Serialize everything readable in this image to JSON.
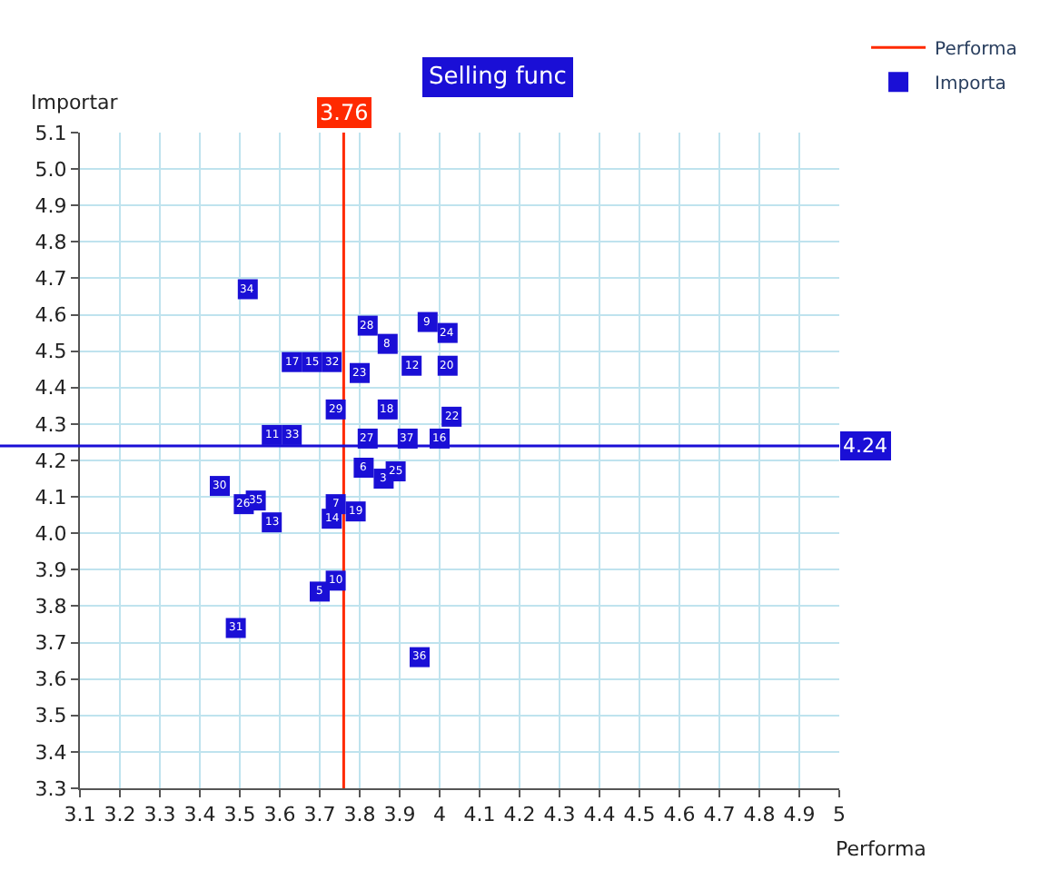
{
  "chart_data": {
    "type": "scatter",
    "title": "Selling func",
    "xlabel": "Performa",
    "ylabel": "Importar",
    "xlim": [
      3.1,
      5
    ],
    "ylim": [
      3.3,
      5.1
    ],
    "xticks": [
      3.1,
      3.2,
      3.3,
      3.4,
      3.5,
      3.6,
      3.7,
      3.8,
      3.9,
      4,
      4.1,
      4.2,
      4.3,
      4.4,
      4.5,
      4.6,
      4.7,
      4.8,
      4.9,
      5
    ],
    "yticks": [
      3.3,
      3.4,
      3.5,
      3.6,
      3.7,
      3.8,
      3.9,
      {
        "value": 4,
        "label": "4.0"
      },
      4.1,
      4.2,
      4.3,
      4.4,
      4.5,
      4.6,
      4.7,
      4.8,
      4.9,
      {
        "value": 5,
        "label": "5.0"
      },
      5.1
    ],
    "grid": true,
    "legend": "top right",
    "marker": "square",
    "series": [
      {
        "name": "Performa",
        "type": "line",
        "marker": "none",
        "color": "#ff2a00",
        "x": [
          3.76,
          3.76
        ],
        "values": [
          3.3,
          5.1
        ]
      },
      {
        "name": "Importa",
        "color": "#1a0fd6",
        "x": [
          3.52,
          3.82,
          3.97,
          4.02,
          3.87,
          3.63,
          3.68,
          3.73,
          3.8,
          3.93,
          4.02,
          3.74,
          3.87,
          4.03,
          3.58,
          3.63,
          3.82,
          3.92,
          4.0,
          3.81,
          3.89,
          3.86,
          3.45,
          3.51,
          3.54,
          3.74,
          3.73,
          3.79,
          3.58,
          3.74,
          3.7,
          3.49,
          3.95
        ],
        "values": [
          4.67,
          4.57,
          4.58,
          4.55,
          4.52,
          4.47,
          4.47,
          4.47,
          4.44,
          4.46,
          4.46,
          4.34,
          4.34,
          4.32,
          4.27,
          4.27,
          4.26,
          4.26,
          4.26,
          4.18,
          4.17,
          4.15,
          4.13,
          4.08,
          4.09,
          4.08,
          4.04,
          4.06,
          4.03,
          3.87,
          3.84,
          3.74,
          3.66
        ]
      }
    ],
    "annotations": [
      {
        "text": "3.76",
        "x": 3.76,
        "y": 5.1
      },
      {
        "text": "34",
        "x": 3.52,
        "y": 4.67
      },
      {
        "text": "28",
        "x": 3.82,
        "y": 4.57
      },
      {
        "text": "9",
        "x": 3.97,
        "y": 4.58
      },
      {
        "text": "24",
        "x": 4.02,
        "y": 4.55
      },
      {
        "text": "8",
        "x": 3.87,
        "y": 4.52
      },
      {
        "text": "17",
        "x": 3.63,
        "y": 4.47
      },
      {
        "text": "15",
        "x": 3.68,
        "y": 4.47
      },
      {
        "text": "32",
        "x": 3.73,
        "y": 4.47
      },
      {
        "text": "23",
        "x": 3.8,
        "y": 4.44
      },
      {
        "text": "12",
        "x": 3.93,
        "y": 4.46
      },
      {
        "text": "20",
        "x": 4.02,
        "y": 4.46
      },
      {
        "text": "29",
        "x": 3.74,
        "y": 4.34
      },
      {
        "text": "18",
        "x": 3.87,
        "y": 4.34
      },
      {
        "text": "22",
        "x": 4.03,
        "y": 4.32
      },
      {
        "text": "11",
        "x": 3.58,
        "y": 4.27
      },
      {
        "text": "33",
        "x": 3.63,
        "y": 4.27
      },
      {
        "text": "27",
        "x": 3.82,
        "y": 4.26
      },
      {
        "text": "37",
        "x": 3.92,
        "y": 4.26
      },
      {
        "text": "16",
        "x": 4.0,
        "y": 4.26
      },
      {
        "text": "6",
        "x": 3.81,
        "y": 4.18
      },
      {
        "text": "25",
        "x": 3.89,
        "y": 4.17
      },
      {
        "text": "3",
        "x": 3.86,
        "y": 4.15
      },
      {
        "text": "30",
        "x": 3.45,
        "y": 4.13
      },
      {
        "text": "26",
        "x": 3.51,
        "y": 4.08
      },
      {
        "text": "35",
        "x": 3.54,
        "y": 4.09
      },
      {
        "text": "7",
        "x": 3.74,
        "y": 4.08
      },
      {
        "text": "14",
        "x": 3.73,
        "y": 4.04
      },
      {
        "text": "19",
        "x": 3.79,
        "y": 4.06
      },
      {
        "text": "13",
        "x": 3.58,
        "y": 4.03
      },
      {
        "text": "10",
        "x": 3.74,
        "y": 3.87
      },
      {
        "text": "5",
        "x": 3.7,
        "y": 3.84
      },
      {
        "text": "31",
        "x": 3.49,
        "y": 3.74
      },
      {
        "text": "36",
        "x": 3.95,
        "y": 3.66
      }
    ],
    "ref_lines": [
      {
        "axis": "y",
        "value": 4.24,
        "label": "4.24",
        "color": "#1a0fd6"
      }
    ]
  }
}
